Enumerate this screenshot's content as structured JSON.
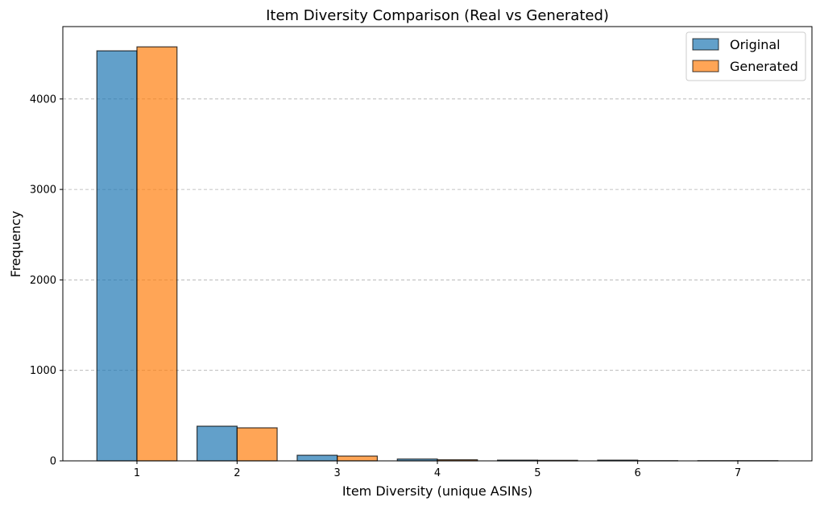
{
  "chart_data": {
    "type": "bar",
    "title": "Item Diversity Comparison (Real vs Generated)",
    "xlabel": "Item Diversity (unique ASINs)",
    "ylabel": "Frequency",
    "categories": [
      "1",
      "2",
      "3",
      "4",
      "5",
      "6",
      "7"
    ],
    "series": [
      {
        "name": "Original",
        "color": "#1f77b4",
        "values": [
          4532,
          383,
          62,
          20,
          8,
          8,
          2
        ]
      },
      {
        "name": "Generated",
        "color": "#ff7f0e",
        "values": [
          4576,
          365,
          53,
          12,
          6,
          2,
          2
        ]
      }
    ],
    "yticks": [
      0,
      1000,
      2000,
      3000,
      4000
    ],
    "ylim": [
      0,
      4800
    ],
    "xlim": [
      0.26,
      7.74
    ],
    "grid": "y, dashed",
    "legend": "top-right"
  }
}
